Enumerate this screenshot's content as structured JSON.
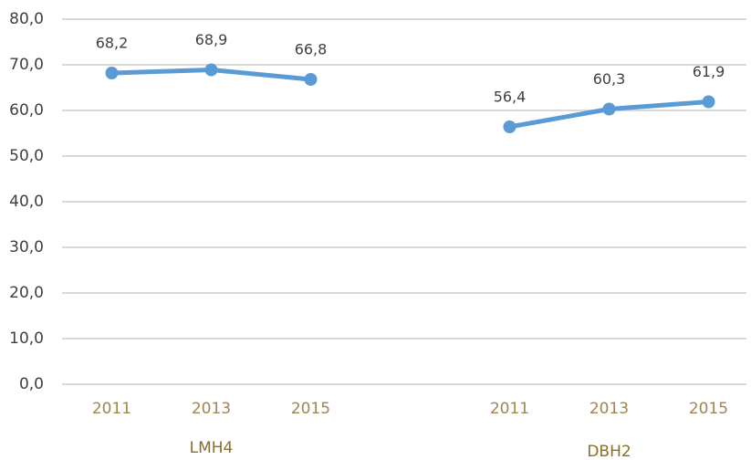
{
  "chart_data": {
    "type": "line",
    "categories": [
      "2011",
      "2013",
      "2015",
      null,
      "2011",
      "2013",
      "2015"
    ],
    "groups": [
      "LMH4",
      "DBH2"
    ],
    "series": [
      {
        "color": "#5b9bd5",
        "values": [
          68.2,
          68.9,
          66.8,
          null,
          56.4,
          60.3,
          61.9
        ],
        "value_labels": [
          "68,2",
          "68,9",
          "66,8",
          null,
          "56,4",
          "60,3",
          "61,9"
        ]
      }
    ],
    "ylim": [
      0,
      80
    ],
    "yticks": [
      {
        "value": 0,
        "label": "0,0"
      },
      {
        "value": 10,
        "label": "10,0"
      },
      {
        "value": 20,
        "label": "20,0"
      },
      {
        "value": 30,
        "label": "30,0"
      },
      {
        "value": 40,
        "label": "40,0"
      },
      {
        "value": 50,
        "label": "50,0"
      },
      {
        "value": 60,
        "label": "60,0"
      },
      {
        "value": 70,
        "label": "70,0"
      },
      {
        "value": 80,
        "label": "80,0"
      }
    ],
    "grid": true
  }
}
